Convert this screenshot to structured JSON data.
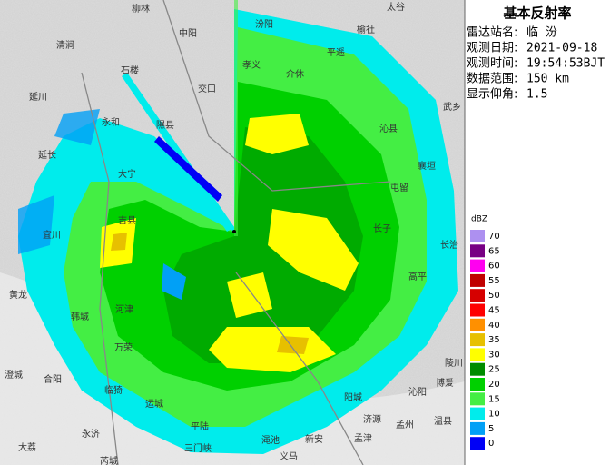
{
  "panel": {
    "title": "基本反射率",
    "fields": [
      {
        "label": "雷达站名:",
        "value": "临 汾"
      },
      {
        "label": "观测日期:",
        "value": "2021-09-18"
      },
      {
        "label": "观测时间:",
        "value": "19:54:53BJT"
      },
      {
        "label": "数据范围:",
        "value": "150 km"
      },
      {
        "label": "显示仰角:",
        "value": "1.5"
      }
    ]
  },
  "legend": {
    "unit": "dBZ",
    "levels": [
      {
        "value": 70,
        "color": "#ad90f0"
      },
      {
        "value": 65,
        "color": "#780084"
      },
      {
        "value": 60,
        "color": "#ff00f0"
      },
      {
        "value": 55,
        "color": "#c00000"
      },
      {
        "value": 50,
        "color": "#d60000"
      },
      {
        "value": 45,
        "color": "#ff0000"
      },
      {
        "value": 40,
        "color": "#ff9000"
      },
      {
        "value": 35,
        "color": "#e7c000"
      },
      {
        "value": 30,
        "color": "#ffff00"
      },
      {
        "value": 25,
        "color": "#008c00"
      },
      {
        "value": 20,
        "color": "#00d000"
      },
      {
        "value": 15,
        "color": "#44ee44"
      },
      {
        "value": 10,
        "color": "#00ecec"
      },
      {
        "value": 5,
        "color": "#01a0f6"
      },
      {
        "value": 0,
        "color": "#0000f6"
      }
    ]
  },
  "map": {
    "places": [
      "柳林",
      "中阳",
      "太谷",
      "榆社",
      "清涧",
      "石楼",
      "汾阳",
      "孝义",
      "平遥",
      "介休",
      "交口",
      "武乡",
      "延川",
      "永和",
      "隰县",
      "沁县",
      "延长",
      "大宁",
      "襄垣",
      "屯留",
      "吉县",
      "宜川",
      "长子",
      "长治",
      "高平",
      "黄龙",
      "河津",
      "韩城",
      "万荣",
      "陵川",
      "澄城",
      "合阳",
      "临猗",
      "阳城",
      "博爱",
      "沁阳",
      "运城",
      "济源",
      "孟州",
      "温县",
      "永济",
      "平陆",
      "渑池",
      "新安",
      "孟津",
      "三门峡",
      "义马",
      "大荔",
      "芮城"
    ]
  }
}
